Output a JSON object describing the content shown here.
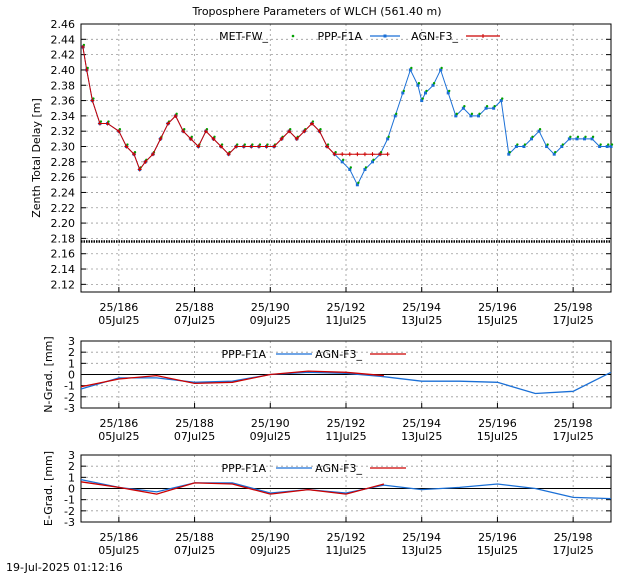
{
  "title": "Troposphere Parameters of WLCH (561.40 m)",
  "timestamp": "19-Jul-2025 01:12:16",
  "colors": {
    "met": "#00a000",
    "ppp": "#1a6fd6",
    "agn": "#cc0000",
    "ref": "#000000",
    "grid": "#9a9a9a"
  },
  "x_ticks": [
    {
      "doy": "25/186",
      "date": "05Jul25"
    },
    {
      "doy": "25/188",
      "date": "07Jul25"
    },
    {
      "doy": "25/190",
      "date": "09Jul25"
    },
    {
      "doy": "25/192",
      "date": "11Jul25"
    },
    {
      "doy": "25/194",
      "date": "13Jul25"
    },
    {
      "doy": "25/196",
      "date": "15Jul25"
    },
    {
      "doy": "25/198",
      "date": "17Jul25"
    }
  ],
  "chart_data": [
    {
      "type": "scatter",
      "xlim": [
        185.0,
        199.0
      ],
      "ylabel": "Zenth Total Delay [m]",
      "ylim": [
        2.11,
        2.46
      ],
      "yticks": [
        "2.12",
        "2.14",
        "2.16",
        "2.18",
        "2.20",
        "2.22",
        "2.24",
        "2.26",
        "2.28",
        "2.30",
        "2.32",
        "2.34",
        "2.36",
        "2.38",
        "2.40",
        "2.42",
        "2.44",
        "2.46"
      ],
      "legend": [
        "MET-FW_",
        "PPP-F1A",
        "AGN-F3_"
      ],
      "grid": true,
      "series": [
        {
          "name": "MET-FW_",
          "x": [
            185.0,
            199.0
          ],
          "y": [
            2.176,
            2.176
          ]
        },
        {
          "name": "PPP-F1A",
          "x": [
            185.05,
            185.15,
            185.3,
            185.5,
            185.7,
            186.0,
            186.2,
            186.4,
            186.55,
            186.7,
            186.9,
            187.1,
            187.3,
            187.5,
            187.7,
            187.9,
            188.1,
            188.3,
            188.5,
            188.7,
            188.9,
            189.1,
            189.3,
            189.5,
            189.7,
            189.9,
            190.1,
            190.3,
            190.5,
            190.7,
            190.9,
            191.1,
            191.3,
            191.5,
            191.7,
            191.9,
            192.1,
            192.3,
            192.5,
            192.7,
            192.9,
            193.1,
            193.3,
            193.5,
            193.7,
            193.9,
            194.0,
            194.1,
            194.3,
            194.5,
            194.7,
            194.9,
            195.1,
            195.3,
            195.5,
            195.7,
            195.9,
            196.1,
            196.3,
            196.5,
            196.7,
            196.9,
            197.1,
            197.3,
            197.5,
            197.7,
            197.9,
            198.1,
            198.3,
            198.5,
            198.7,
            198.9,
            199.0
          ],
          "y": [
            2.43,
            2.4,
            2.36,
            2.33,
            2.33,
            2.32,
            2.3,
            2.29,
            2.27,
            2.28,
            2.29,
            2.31,
            2.33,
            2.34,
            2.32,
            2.31,
            2.3,
            2.32,
            2.31,
            2.3,
            2.29,
            2.3,
            2.3,
            2.3,
            2.3,
            2.3,
            2.3,
            2.31,
            2.32,
            2.31,
            2.32,
            2.33,
            2.32,
            2.3,
            2.29,
            2.28,
            2.27,
            2.25,
            2.27,
            2.28,
            2.29,
            2.31,
            2.34,
            2.37,
            2.4,
            2.38,
            2.36,
            2.37,
            2.38,
            2.4,
            2.37,
            2.34,
            2.35,
            2.34,
            2.34,
            2.35,
            2.35,
            2.36,
            2.29,
            2.3,
            2.3,
            2.31,
            2.32,
            2.3,
            2.29,
            2.3,
            2.31,
            2.31,
            2.31,
            2.31,
            2.3,
            2.3,
            2.3
          ]
        },
        {
          "name": "AGN-F3_",
          "x": [
            185.05,
            185.15,
            185.3,
            185.5,
            185.7,
            186.0,
            186.2,
            186.4,
            186.55,
            186.7,
            186.9,
            187.1,
            187.3,
            187.5,
            187.7,
            187.9,
            188.1,
            188.3,
            188.5,
            188.7,
            188.9,
            189.1,
            189.3,
            189.5,
            189.7,
            189.9,
            190.1,
            190.3,
            190.5,
            190.7,
            190.9,
            191.1,
            191.3,
            191.5,
            191.7,
            191.9,
            192.1,
            192.3,
            192.5,
            192.7,
            192.9,
            193.1
          ],
          "y": [
            2.43,
            2.4,
            2.36,
            2.33,
            2.33,
            2.32,
            2.3,
            2.29,
            2.27,
            2.28,
            2.29,
            2.31,
            2.33,
            2.34,
            2.32,
            2.31,
            2.3,
            2.32,
            2.31,
            2.3,
            2.29,
            2.3,
            2.3,
            2.3,
            2.3,
            2.3,
            2.3,
            2.31,
            2.32,
            2.31,
            2.32,
            2.33,
            2.32,
            2.3,
            2.29,
            2.29,
            2.29,
            2.29,
            2.29,
            2.29,
            2.29,
            2.29
          ]
        }
      ]
    },
    {
      "type": "line",
      "xlim": [
        185.0,
        199.0
      ],
      "ylabel": "N-Grad. [mm]",
      "ylim": [
        -3,
        3
      ],
      "yticks": [
        "-3",
        "-2",
        "-1",
        "0",
        "1",
        "2",
        "3"
      ],
      "legend": [
        "PPP-F1A",
        "AGN-F3_"
      ],
      "zero_line": true,
      "series": [
        {
          "name": "PPP-F1A",
          "x": [
            185.0,
            186.0,
            187.0,
            188.0,
            189.0,
            190.0,
            191.0,
            192.0,
            193.0,
            194.0,
            195.0,
            196.0,
            197.0,
            198.0,
            199.0
          ],
          "y": [
            -1.3,
            -0.3,
            -0.3,
            -0.7,
            -0.6,
            0.0,
            0.2,
            0.1,
            -0.2,
            -0.6,
            -0.6,
            -0.7,
            -1.7,
            -1.5,
            0.2
          ]
        },
        {
          "name": "AGN-F3_",
          "x": [
            185.0,
            186.0,
            187.0,
            188.0,
            189.0,
            190.0,
            191.0,
            192.0,
            193.0
          ],
          "y": [
            -1.1,
            -0.4,
            -0.1,
            -0.8,
            -0.7,
            0.0,
            0.3,
            0.2,
            -0.1
          ]
        }
      ]
    },
    {
      "type": "line",
      "xlim": [
        185.0,
        199.0
      ],
      "ylabel": "E-Grad. [mm]",
      "ylim": [
        -3,
        3
      ],
      "yticks": [
        "-3",
        "-2",
        "-1",
        "0",
        "1",
        "2",
        "3"
      ],
      "legend": [
        "PPP-F1A",
        "AGN-F3_"
      ],
      "zero_line": true,
      "series": [
        {
          "name": "PPP-F1A",
          "x": [
            185.0,
            186.0,
            187.0,
            188.0,
            189.0,
            190.0,
            191.0,
            192.0,
            193.0,
            194.0,
            195.0,
            196.0,
            197.0,
            198.0,
            199.0
          ],
          "y": [
            0.8,
            0.1,
            -0.3,
            0.5,
            0.5,
            -0.4,
            -0.1,
            -0.4,
            0.3,
            -0.1,
            0.1,
            0.4,
            0.0,
            -0.8,
            -0.9
          ]
        },
        {
          "name": "AGN-F3_",
          "x": [
            185.0,
            186.0,
            187.0,
            188.0,
            189.0,
            190.0,
            191.0,
            192.0,
            193.0
          ],
          "y": [
            0.6,
            0.1,
            -0.5,
            0.5,
            0.4,
            -0.5,
            -0.1,
            -0.5,
            0.4
          ]
        }
      ]
    }
  ]
}
